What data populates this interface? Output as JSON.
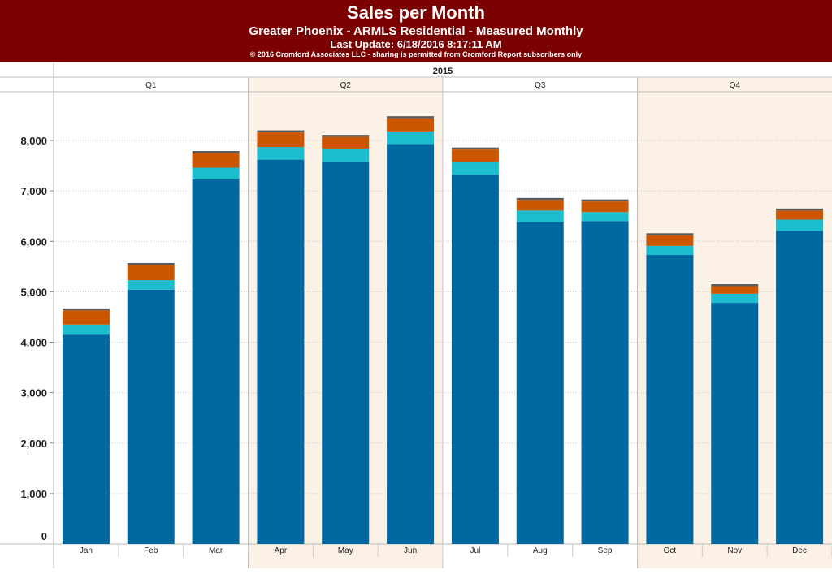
{
  "header": {
    "title": "Sales per Month",
    "subtitle": "Greater Phoenix - ARMLS Residential - Measured Monthly",
    "last_update": "Last Update: 6/18/2016 8:17:11 AM",
    "copyright": "© 2016 Cromford Associates LLC - sharing is permitted from Cromford Report subscribers only"
  },
  "colors": {
    "header_bg": "#7b0000",
    "band_shade": "#fbf1e6",
    "grid": "#c8c8c8",
    "series": [
      "#0068a0",
      "#1bbdce",
      "#cc5500",
      "#5a5a5a"
    ]
  },
  "chart_data": {
    "type": "bar",
    "stacked": true,
    "year_label": "2015",
    "quarters": [
      {
        "label": "Q1",
        "months": [
          "Jan",
          "Feb",
          "Mar"
        ],
        "shaded": false
      },
      {
        "label": "Q2",
        "months": [
          "Apr",
          "May",
          "Jun"
        ],
        "shaded": true
      },
      {
        "label": "Q3",
        "months": [
          "Jul",
          "Aug",
          "Sep"
        ],
        "shaded": false
      },
      {
        "label": "Q4",
        "months": [
          "Oct",
          "Nov",
          "Dec"
        ],
        "shaded": true
      }
    ],
    "categories": [
      "Jan",
      "Feb",
      "Mar",
      "Apr",
      "May",
      "Jun",
      "Jul",
      "Aug",
      "Sep",
      "Oct",
      "Nov",
      "Dec"
    ],
    "series": [
      {
        "values": [
          4150,
          5040,
          7230,
          7620,
          7570,
          7930,
          7320,
          6380,
          6400,
          5730,
          4780,
          6210
        ]
      },
      {
        "values": [
          200,
          190,
          230,
          250,
          270,
          250,
          250,
          230,
          180,
          180,
          180,
          220
        ]
      },
      {
        "values": [
          280,
          300,
          290,
          290,
          230,
          260,
          250,
          210,
          210,
          210,
          150,
          180
        ]
      },
      {
        "values": [
          40,
          40,
          40,
          40,
          40,
          40,
          40,
          40,
          40,
          40,
          40,
          40
        ]
      }
    ],
    "ylim": [
      0,
      8900
    ],
    "yticks": [
      0,
      1000,
      2000,
      3000,
      4000,
      5000,
      6000,
      7000,
      8000
    ],
    "ytick_labels": [
      "0",
      "1,000",
      "2,000",
      "3,000",
      "4,000",
      "5,000",
      "6,000",
      "7,000",
      "8,000"
    ],
    "grid": true
  }
}
